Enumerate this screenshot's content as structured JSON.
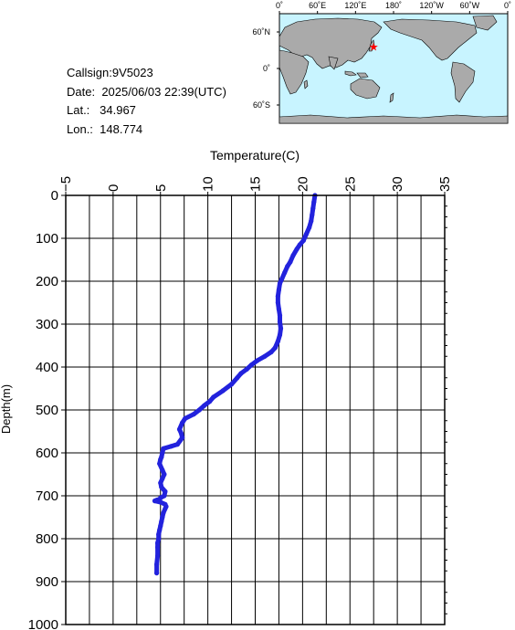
{
  "station": {
    "callsign_label": "Callsign:",
    "callsign": "9V5023",
    "date_label": "Date:",
    "date": "2025/06/03 22:39(UTC)",
    "lat_label": "Lat.:",
    "lat": "34.967",
    "lon_label": "Lon.:",
    "lon": "148.774"
  },
  "map": {
    "top_labels": [
      "0˚",
      "60˚E",
      "120˚E",
      "180˚",
      "120˚W",
      "60˚W",
      "0˚"
    ],
    "left_labels": [
      "60˚N",
      "0˚",
      "60˚S"
    ],
    "ocean_color": "#c8f4ff",
    "land_color": "#aaaaaa",
    "marker_color": "#ff0000",
    "marker": {
      "lon": 148.774,
      "lat": 34.967
    }
  },
  "chart_data": {
    "type": "line",
    "title": "",
    "xlabel": "Temperature(C)",
    "ylabel": "Depth(m)",
    "xlim": [
      -5,
      35
    ],
    "ylim": [
      0,
      1000
    ],
    "y_inverted": true,
    "x_axis_position": "top",
    "x_ticks": [
      "-5",
      "0",
      "5",
      "10",
      "15",
      "20",
      "25",
      "30",
      "35"
    ],
    "y_ticks": [
      "0",
      "100",
      "200",
      "300",
      "400",
      "500",
      "600",
      "700",
      "800",
      "900",
      "1000"
    ],
    "grid": true,
    "series": [
      {
        "color": "#2222dd",
        "x": [
          21.3,
          21.2,
          21.1,
          21.0,
          20.9,
          20.7,
          20.4,
          20.1,
          19.7,
          19.4,
          19.0,
          18.7,
          18.4,
          18.1,
          17.8,
          17.6,
          17.5,
          17.4,
          17.4,
          17.5,
          17.6,
          17.6,
          17.7,
          17.6,
          17.4,
          17.1,
          16.7,
          16.0,
          15.2,
          14.6,
          14.1,
          13.5,
          13.1,
          12.5,
          11.6,
          10.6,
          10.2,
          9.6,
          9.1,
          8.5,
          7.6,
          7.3,
          7.0,
          7.2,
          7.3,
          6.8,
          6.1,
          5.3,
          5.2,
          5.1,
          5.0,
          4.9,
          5.2,
          5.4,
          5.2,
          5.0,
          5.1,
          5.5,
          5.4,
          5.0,
          4.9,
          4.6,
          4.4,
          5.0,
          5.5,
          5.6,
          5.5,
          5.3,
          5.2,
          5.1,
          5.0,
          4.9,
          4.8,
          4.8,
          4.7,
          4.7,
          4.7,
          4.6,
          4.6
        ],
        "y": [
          0,
          15,
          30,
          45,
          60,
          75,
          90,
          105,
          115,
          125,
          140,
          155,
          165,
          180,
          195,
          205,
          220,
          235,
          250,
          265,
          280,
          295,
          310,
          325,
          340,
          355,
          365,
          375,
          385,
          395,
          405,
          415,
          425,
          440,
          455,
          470,
          480,
          490,
          500,
          510,
          520,
          530,
          545,
          555,
          565,
          580,
          585,
          590,
          600,
          610,
          615,
          625,
          640,
          650,
          660,
          670,
          680,
          690,
          700,
          705,
          708,
          710,
          712,
          715,
          720,
          725,
          730,
          740,
          750,
          760,
          770,
          780,
          790,
          800,
          810,
          820,
          840,
          860,
          880
        ]
      }
    ]
  }
}
